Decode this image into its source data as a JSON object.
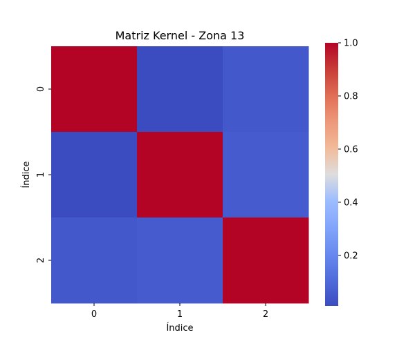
{
  "chart_data": {
    "type": "heatmap",
    "title": "Matriz Kernel - Zona 13",
    "xlabel": "Índice",
    "ylabel": "Índice",
    "x_categories": [
      "0",
      "1",
      "2"
    ],
    "y_categories": [
      "0",
      "1",
      "2"
    ],
    "values": [
      [
        1.0,
        0.01,
        0.05
      ],
      [
        0.01,
        1.0,
        0.06
      ],
      [
        0.05,
        0.06,
        1.0
      ]
    ],
    "colormap": "coolwarm",
    "vmin": 0.01,
    "vmax": 1.0,
    "colorbar_ticks": [
      {
        "value": 0.2,
        "label": "0.2"
      },
      {
        "value": 0.4,
        "label": "0.4"
      },
      {
        "value": 0.6,
        "label": "0.6"
      },
      {
        "value": 0.8,
        "label": "0.8"
      },
      {
        "value": 1.0,
        "label": "1.0"
      }
    ],
    "grid": false,
    "legend": "colorbar-right"
  }
}
